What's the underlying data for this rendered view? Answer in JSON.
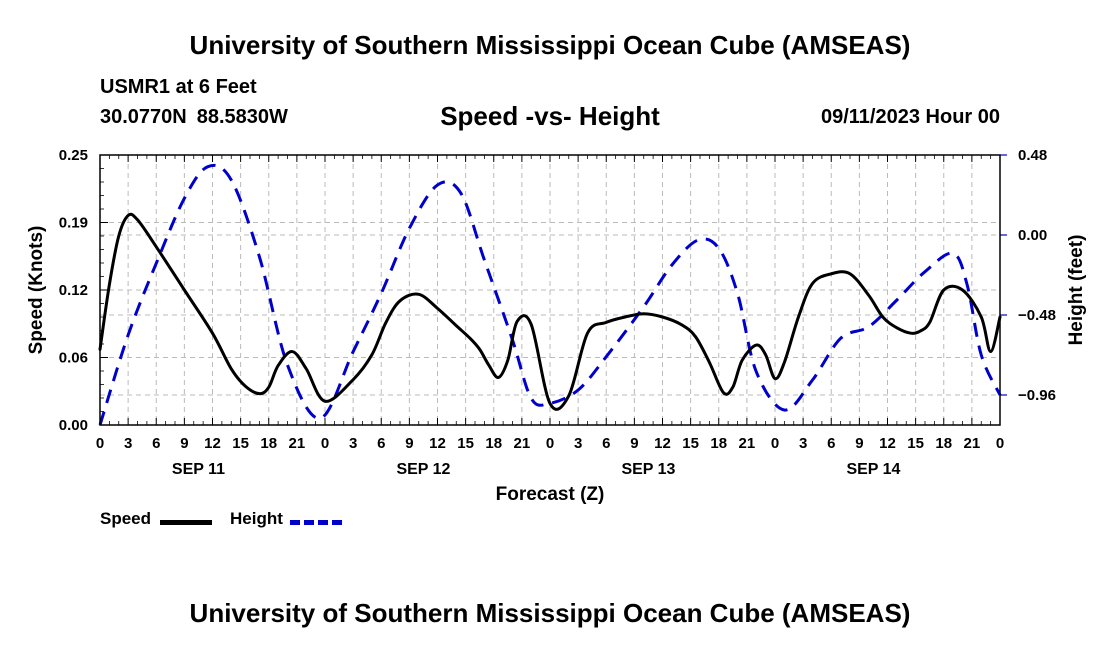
{
  "header": {
    "title": "University of Southern Mississippi Ocean Cube (AMSEAS)",
    "station": "USMR1 at 6 Feet",
    "latitude": "30.0770N",
    "longitude": "88.5830W",
    "datetime": "09/11/2023 Hour 00"
  },
  "footer": {
    "title": "University of Southern Mississippi Ocean Cube (AMSEAS)"
  },
  "colors": {
    "speed": "#000000",
    "height": "#0000cc",
    "grid": "#bbbbbb"
  },
  "chart_data": {
    "type": "line",
    "title": "Speed -vs- Height",
    "xlabel": "Forecast (Z)",
    "ylabel": "Speed (Knots)",
    "y2label": "Height (feet)",
    "grid": true,
    "legend_position": "bottom-left",
    "x_range": [
      0,
      96
    ],
    "ylim": [
      0,
      0.25
    ],
    "y2lim": [
      -1.14,
      0.48
    ],
    "yticks": [
      "0.00",
      "0.06",
      "0.12",
      "0.19",
      "0.25"
    ],
    "ytick_values": [
      0,
      0.0625,
      0.125,
      0.1875,
      0.25
    ],
    "y2ticks": [
      "−0.96",
      "−0.48",
      "0.00",
      "0.48"
    ],
    "y2tick_values": [
      -0.96,
      -0.48,
      0.0,
      0.48
    ],
    "xtick_labels": [
      "0",
      "3",
      "6",
      "9",
      "12",
      "15",
      "18",
      "21",
      "0",
      "3",
      "6",
      "9",
      "12",
      "15",
      "18",
      "21",
      "0",
      "3",
      "6",
      "9",
      "12",
      "15",
      "18",
      "21",
      "0",
      "3",
      "6",
      "9",
      "12",
      "15",
      "18",
      "21",
      "0"
    ],
    "day_labels": [
      {
        "label": "SEP 11",
        "x": 10.5
      },
      {
        "label": "SEP 12",
        "x": 34.5
      },
      {
        "label": "SEP 13",
        "x": 58.5
      },
      {
        "label": "SEP 14",
        "x": 82.5
      }
    ],
    "series": [
      {
        "name": "Speed",
        "axis": "left",
        "style": "solid",
        "x": [
          0,
          1,
          2,
          3,
          4,
          6,
          9,
          12,
          14,
          15.5,
          17,
          18,
          19,
          20.5,
          22,
          24,
          27,
          29,
          30.5,
          32,
          34,
          36,
          38,
          39.5,
          40.5,
          41.5,
          42.5,
          43.5,
          44.5,
          46,
          48,
          50,
          52,
          54,
          56,
          58,
          60,
          62,
          63.5,
          65,
          66.5,
          67.5,
          68.5,
          70,
          71,
          72,
          73,
          74.5,
          76,
          78,
          80,
          82,
          83.5,
          85,
          86.5,
          87.5,
          88.5,
          90,
          92,
          94,
          95,
          96
        ],
        "values": [
          0.07,
          0.13,
          0.175,
          0.194,
          0.19,
          0.165,
          0.125,
          0.085,
          0.052,
          0.036,
          0.029,
          0.035,
          0.055,
          0.068,
          0.052,
          0.022,
          0.042,
          0.065,
          0.095,
          0.115,
          0.121,
          0.108,
          0.092,
          0.08,
          0.07,
          0.055,
          0.044,
          0.06,
          0.096,
          0.093,
          0.02,
          0.027,
          0.085,
          0.095,
          0.1,
          0.103,
          0.1,
          0.093,
          0.082,
          0.058,
          0.03,
          0.035,
          0.06,
          0.074,
          0.065,
          0.043,
          0.058,
          0.1,
          0.131,
          0.14,
          0.14,
          0.12,
          0.1,
          0.09,
          0.085,
          0.087,
          0.095,
          0.125,
          0.125,
          0.1,
          0.068,
          0.1
        ]
      },
      {
        "name": "Height",
        "axis": "right",
        "style": "dashed",
        "x": [
          0,
          3,
          6,
          9,
          11.5,
          14,
          17,
          20,
          23.5,
          27,
          30,
          33,
          36,
          38.5,
          41,
          44,
          46,
          48,
          51,
          54,
          58,
          61,
          63.8,
          66,
          68,
          70,
          73,
          76,
          79,
          82,
          85,
          88,
          91,
          92.5,
          94,
          96
        ],
        "values": [
          -1.14,
          -0.6,
          -0.17,
          0.22,
          0.41,
          0.33,
          -0.13,
          -0.78,
          -1.1,
          -0.7,
          -0.35,
          0.04,
          0.3,
          0.25,
          -0.15,
          -0.63,
          -0.98,
          -1.01,
          -0.93,
          -0.73,
          -0.43,
          -0.18,
          -0.03,
          -0.08,
          -0.35,
          -0.82,
          -1.05,
          -0.87,
          -0.62,
          -0.55,
          -0.39,
          -0.22,
          -0.11,
          -0.3,
          -0.72,
          -0.96
        ]
      }
    ]
  }
}
